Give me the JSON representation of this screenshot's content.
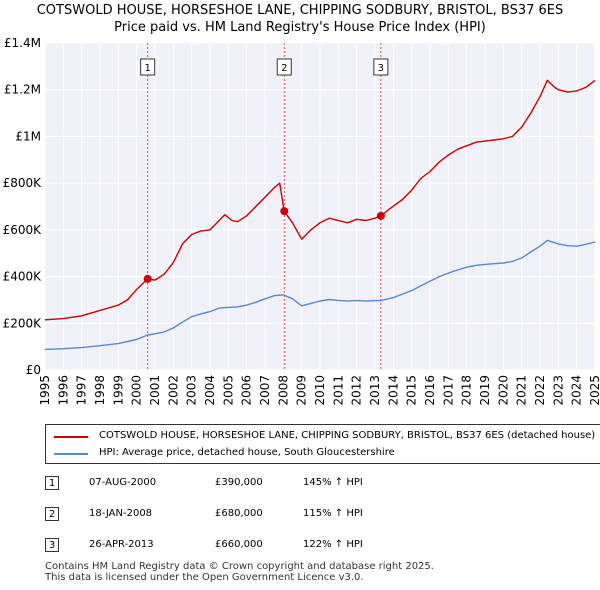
{
  "title_line1": "COTSWOLD HOUSE, HORSESHOE LANE, CHIPPING SODBURY, BRISTOL, BS37 6ES",
  "title_line2": "Price paid vs. HM Land Registry's House Price Index (HPI)",
  "chart_data": {
    "type": "line",
    "title": "Price paid vs. HM Land Registry's House Price Index (HPI)",
    "xlabel": "",
    "ylabel": "",
    "xlim": [
      1995,
      2025
    ],
    "ylim": [
      0,
      1400000
    ],
    "y_ticks": [
      {
        "value": 0,
        "label": "£0"
      },
      {
        "value": 200000,
        "label": "£200K"
      },
      {
        "value": 400000,
        "label": "£400K"
      },
      {
        "value": 600000,
        "label": "£600K"
      },
      {
        "value": 800000,
        "label": "£800K"
      },
      {
        "value": 1000000,
        "label": "£1M"
      },
      {
        "value": 1200000,
        "label": "£1.2M"
      },
      {
        "value": 1400000,
        "label": "£1.4M"
      }
    ],
    "x_ticks": [
      "1995",
      "1996",
      "1997",
      "1998",
      "1999",
      "2000",
      "2001",
      "2002",
      "2003",
      "2004",
      "2005",
      "2006",
      "2007",
      "2008",
      "2009",
      "2010",
      "2011",
      "2012",
      "2013",
      "2014",
      "2015",
      "2016",
      "2017",
      "2018",
      "2019",
      "2020",
      "2021",
      "2022",
      "2023",
      "2024",
      "2025"
    ],
    "series": [
      {
        "name": "COTSWOLD HOUSE, HORSESHOE LANE, CHIPPING SODBURY, BRISTOL, BS37 6ES (detached house)",
        "color": "#cc0000",
        "points": [
          [
            1995.0,
            215000
          ],
          [
            1996.0,
            220000
          ],
          [
            1997.0,
            232000
          ],
          [
            1998.0,
            255000
          ],
          [
            1999.0,
            278000
          ],
          [
            1999.5,
            300000
          ],
          [
            2000.0,
            345000
          ],
          [
            2000.6,
            390000
          ],
          [
            2001.0,
            385000
          ],
          [
            2001.5,
            410000
          ],
          [
            2002.0,
            460000
          ],
          [
            2002.5,
            540000
          ],
          [
            2003.0,
            580000
          ],
          [
            2003.5,
            595000
          ],
          [
            2004.0,
            600000
          ],
          [
            2004.5,
            640000
          ],
          [
            2004.8,
            665000
          ],
          [
            2005.2,
            640000
          ],
          [
            2005.5,
            635000
          ],
          [
            2006.0,
            660000
          ],
          [
            2006.5,
            700000
          ],
          [
            2007.0,
            740000
          ],
          [
            2007.5,
            780000
          ],
          [
            2007.8,
            800000
          ],
          [
            2008.05,
            680000
          ],
          [
            2008.5,
            630000
          ],
          [
            2009.0,
            560000
          ],
          [
            2009.5,
            600000
          ],
          [
            2010.0,
            630000
          ],
          [
            2010.5,
            650000
          ],
          [
            2011.0,
            640000
          ],
          [
            2011.5,
            630000
          ],
          [
            2012.0,
            645000
          ],
          [
            2012.5,
            640000
          ],
          [
            2013.0,
            650000
          ],
          [
            2013.32,
            660000
          ],
          [
            2013.8,
            690000
          ],
          [
            2014.5,
            730000
          ],
          [
            2015.0,
            770000
          ],
          [
            2015.5,
            820000
          ],
          [
            2016.0,
            850000
          ],
          [
            2016.5,
            890000
          ],
          [
            2017.0,
            920000
          ],
          [
            2017.5,
            945000
          ],
          [
            2018.0,
            960000
          ],
          [
            2018.5,
            975000
          ],
          [
            2019.0,
            980000
          ],
          [
            2019.5,
            985000
          ],
          [
            2020.0,
            990000
          ],
          [
            2020.5,
            1000000
          ],
          [
            2021.0,
            1040000
          ],
          [
            2021.5,
            1100000
          ],
          [
            2022.0,
            1170000
          ],
          [
            2022.4,
            1240000
          ],
          [
            2022.8,
            1210000
          ],
          [
            2023.0,
            1200000
          ],
          [
            2023.5,
            1190000
          ],
          [
            2024.0,
            1195000
          ],
          [
            2024.5,
            1210000
          ],
          [
            2025.0,
            1240000
          ]
        ]
      },
      {
        "name": "HPI: Average price, detached house, South Gloucestershire",
        "color": "#5588cc",
        "points": [
          [
            1995.0,
            88000
          ],
          [
            1996.0,
            91000
          ],
          [
            1997.0,
            96000
          ],
          [
            1998.0,
            104000
          ],
          [
            1999.0,
            113000
          ],
          [
            2000.0,
            131000
          ],
          [
            2000.6,
            150000
          ],
          [
            2001.0,
            155000
          ],
          [
            2001.5,
            163000
          ],
          [
            2002.0,
            180000
          ],
          [
            2002.5,
            205000
          ],
          [
            2003.0,
            228000
          ],
          [
            2003.5,
            240000
          ],
          [
            2004.0,
            250000
          ],
          [
            2004.5,
            265000
          ],
          [
            2005.0,
            268000
          ],
          [
            2005.5,
            270000
          ],
          [
            2006.0,
            278000
          ],
          [
            2006.5,
            290000
          ],
          [
            2007.0,
            305000
          ],
          [
            2007.5,
            318000
          ],
          [
            2008.0,
            322000
          ],
          [
            2008.5,
            305000
          ],
          [
            2009.0,
            275000
          ],
          [
            2009.5,
            285000
          ],
          [
            2010.0,
            295000
          ],
          [
            2010.5,
            302000
          ],
          [
            2011.0,
            298000
          ],
          [
            2011.5,
            295000
          ],
          [
            2012.0,
            297000
          ],
          [
            2012.5,
            295000
          ],
          [
            2013.0,
            297000
          ],
          [
            2013.32,
            297000
          ],
          [
            2014.0,
            310000
          ],
          [
            2014.5,
            325000
          ],
          [
            2015.0,
            340000
          ],
          [
            2015.5,
            360000
          ],
          [
            2016.0,
            380000
          ],
          [
            2016.5,
            400000
          ],
          [
            2017.0,
            415000
          ],
          [
            2017.5,
            428000
          ],
          [
            2018.0,
            440000
          ],
          [
            2018.5,
            448000
          ],
          [
            2019.0,
            452000
          ],
          [
            2019.5,
            455000
          ],
          [
            2020.0,
            458000
          ],
          [
            2020.5,
            465000
          ],
          [
            2021.0,
            480000
          ],
          [
            2021.5,
            505000
          ],
          [
            2022.0,
            530000
          ],
          [
            2022.4,
            555000
          ],
          [
            2022.8,
            545000
          ],
          [
            2023.0,
            540000
          ],
          [
            2023.5,
            532000
          ],
          [
            2024.0,
            530000
          ],
          [
            2024.5,
            538000
          ],
          [
            2025.0,
            548000
          ]
        ]
      }
    ],
    "transactions": [
      {
        "num": "1",
        "x": 2000.6,
        "value": 390000
      },
      {
        "num": "2",
        "x": 2008.05,
        "value": 680000
      },
      {
        "num": "3",
        "x": 2013.32,
        "value": 660000
      }
    ]
  },
  "legend": [
    {
      "label": "COTSWOLD HOUSE, HORSESHOE LANE, CHIPPING SODBURY, BRISTOL, BS37 6ES (detached house)",
      "color": "#cc0000"
    },
    {
      "label": "HPI: Average price, detached house, South Gloucestershire",
      "color": "#5588cc"
    }
  ],
  "table": [
    {
      "num": "1",
      "date": "07-AUG-2000",
      "price": "£390,000",
      "hpi": "145% ↑ HPI"
    },
    {
      "num": "2",
      "date": "18-JAN-2008",
      "price": "£680,000",
      "hpi": "115% ↑ HPI"
    },
    {
      "num": "3",
      "date": "26-APR-2013",
      "price": "£660,000",
      "hpi": "122% ↑ HPI"
    }
  ],
  "footer_line1": "Contains HM Land Registry data © Crown copyright and database right 2025.",
  "footer_line2": "This data is licensed under the Open Government Licence v3.0."
}
